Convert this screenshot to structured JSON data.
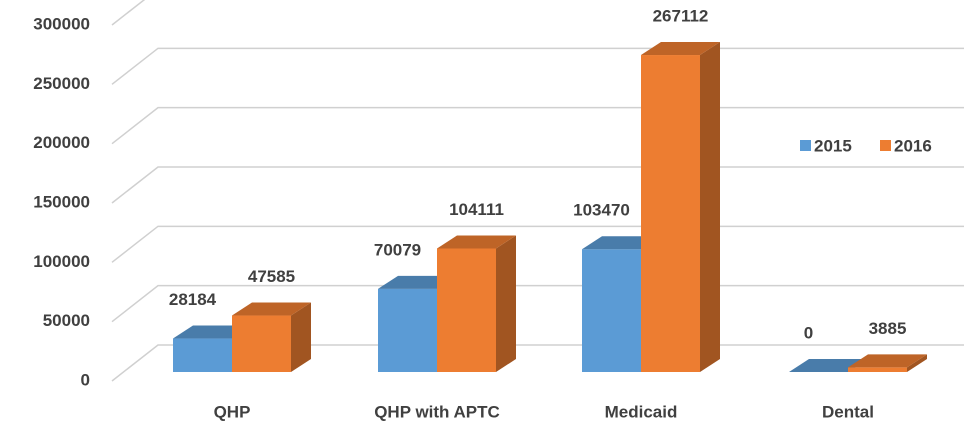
{
  "chart_data": {
    "type": "bar3d",
    "categories": [
      "QHP",
      "QHP with APTC",
      "Medicaid",
      "Dental"
    ],
    "series": [
      {
        "name": "2015",
        "color": "#5b9bd5",
        "values": [
          28184,
          70079,
          103470,
          0
        ]
      },
      {
        "name": "2016",
        "color": "#ed7d31",
        "values": [
          47585,
          104111,
          267112,
          3885
        ]
      }
    ],
    "ylim": [
      0,
      300000
    ],
    "yticks": [
      0,
      50000,
      100000,
      150000,
      200000,
      250000,
      300000
    ],
    "grid": true,
    "legend": "right"
  }
}
